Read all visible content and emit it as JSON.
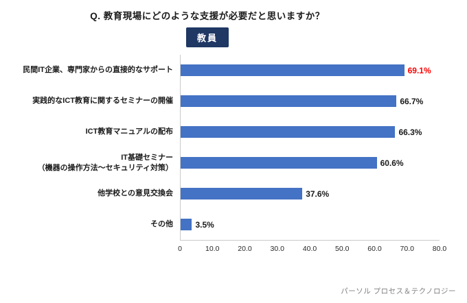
{
  "chart_data": {
    "type": "bar",
    "orientation": "horizontal",
    "title": "Q.  教育現場にどのような支援が必要だと思いますか？",
    "group_label": "教員",
    "categories": [
      "民間IT企業、専門家からの直接的なサポート",
      "実践的なICT教育に関するセミナーの開催",
      "ICT教育マニュアルの配布",
      "IT基礎セミナー\n（機器の操作方法～セキュリティ対策）",
      "他学校との意見交換会",
      "その他"
    ],
    "values": [
      69.1,
      66.7,
      66.3,
      60.6,
      37.6,
      3.5
    ],
    "value_labels": [
      "69.1%",
      "66.7%",
      "66.3%",
      "60.6%",
      "37.6%",
      "3.5%"
    ],
    "value_label_colors": [
      "#ff0000",
      "#1a1a1a",
      "#1a1a1a",
      "#1a1a1a",
      "#1a1a1a",
      "#1a1a1a"
    ],
    "x_ticks": [
      "0",
      "10.0",
      "20.0",
      "30.0",
      "40.0",
      "50.0",
      "60.0",
      "70.0",
      "80.0"
    ],
    "xlim": [
      0,
      80
    ],
    "bar_color": "#4472c4",
    "badge_color": "#1f3864",
    "grid": false,
    "legend": false
  },
  "footer": {
    "credit": "パーソル プロセス＆テクノロジー"
  }
}
